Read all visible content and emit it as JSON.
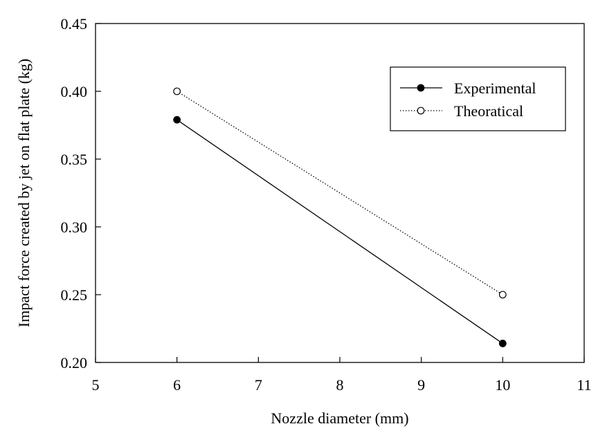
{
  "chart_data": {
    "type": "line",
    "title": "",
    "xlabel": "Nozzle diameter (mm)",
    "ylabel": "Impact force created by jet on flat plate (kg)",
    "xlim": [
      5,
      11
    ],
    "ylim": [
      0.2,
      0.45
    ],
    "x_ticks": [
      "5",
      "6",
      "7",
      "8",
      "9",
      "10",
      "11"
    ],
    "y_ticks": [
      "0.20",
      "0.25",
      "0.30",
      "0.35",
      "0.40",
      "0.45"
    ],
    "grid": false,
    "legend_position": "top-right",
    "series": [
      {
        "name": "Experimental",
        "x": [
          6,
          10
        ],
        "y": [
          0.379,
          0.214
        ],
        "line_style": "solid",
        "marker": "filled-circle",
        "color": "#000000"
      },
      {
        "name": "Theoratical",
        "x": [
          6,
          10
        ],
        "y": [
          0.4,
          0.25
        ],
        "line_style": "dotted",
        "marker": "open-circle",
        "color": "#000000"
      }
    ]
  }
}
